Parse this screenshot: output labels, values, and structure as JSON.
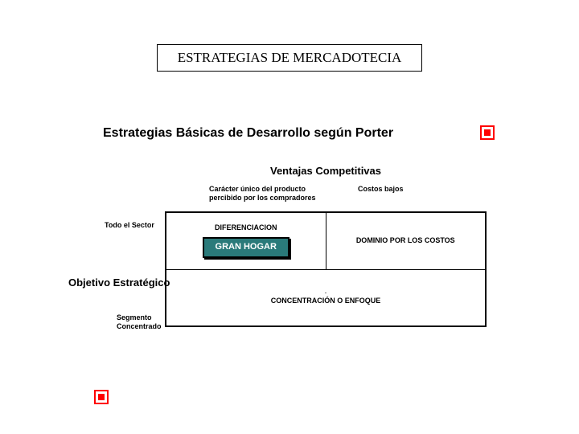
{
  "title": "ESTRATEGIAS DE MERCADOTECIA",
  "subtitle": "Estrategias Básicas de Desarrollo según Porter",
  "matrix": {
    "columns_title": "Ventajas Competitivas",
    "col1": "Carácter único del producto percibido por los compradores",
    "col2": "Costos bajos",
    "rows_title": "Objetivo Estratégico",
    "row1": "Todo el Sector",
    "row2": "Segmento Concentrado",
    "cells": {
      "r1c1_top": "DIFERENCIACION",
      "r1c1_box": "GRAN HOGAR",
      "r1c2": "DOMINIO POR LOS COSTOS",
      "r2": "CONCENTRACIÓN O ENFOQUE"
    },
    "colors": {
      "box_bg": "#2a7a7a",
      "box_text": "#ffffff",
      "marker_border": "#ff0000",
      "marker_fill": "#ff0000",
      "page_bg": "#ffffff",
      "border": "#000000"
    }
  }
}
